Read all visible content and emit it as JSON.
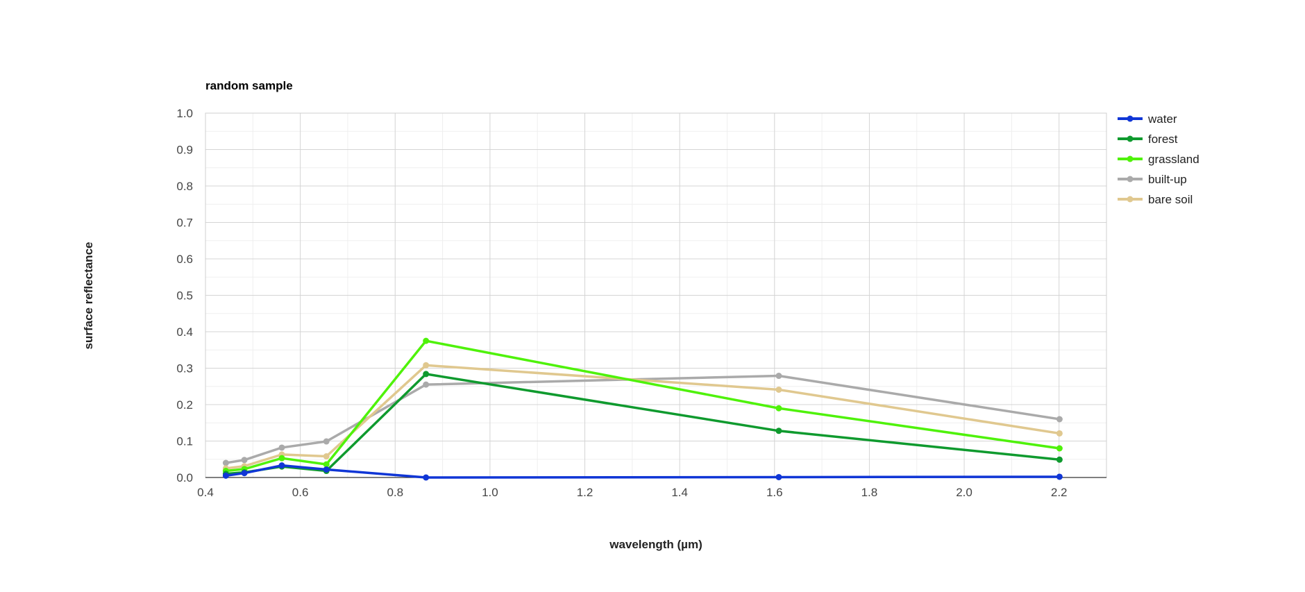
{
  "chart_data": {
    "type": "line",
    "title": "random sample",
    "xlabel": "wavelength (µm)",
    "ylabel": "surface reflectance",
    "xlim": [
      0.4,
      2.3
    ],
    "ylim": [
      0.0,
      1.0
    ],
    "xticks": [
      0.4,
      0.6,
      0.8,
      1.0,
      1.2,
      1.4,
      1.6,
      1.8,
      2.0,
      2.2
    ],
    "yticks": [
      0.0,
      0.1,
      0.2,
      0.3,
      0.4,
      0.5,
      0.6,
      0.7,
      0.8,
      0.9,
      1.0
    ],
    "grid": true,
    "legend_position": "right",
    "x": [
      0.443,
      0.482,
      0.561,
      0.655,
      0.865,
      1.609,
      2.201
    ],
    "series": [
      {
        "name": "water",
        "color": "#1036d6",
        "values": [
          0.005,
          0.012,
          0.033,
          0.022,
          0.0,
          0.001,
          0.002
        ]
      },
      {
        "name": "forest",
        "color": "#0f9a2e",
        "values": [
          0.01,
          0.014,
          0.03,
          0.018,
          0.284,
          0.128,
          0.049
        ]
      },
      {
        "name": "grassland",
        "color": "#4ff20a",
        "values": [
          0.018,
          0.023,
          0.053,
          0.036,
          0.375,
          0.19,
          0.08
        ]
      },
      {
        "name": "built-up",
        "color": "#aaaaaa",
        "values": [
          0.04,
          0.048,
          0.082,
          0.099,
          0.255,
          0.279,
          0.16
        ]
      },
      {
        "name": "bare soil",
        "color": "#e0c88f",
        "values": [
          0.025,
          0.031,
          0.063,
          0.058,
          0.308,
          0.241,
          0.121
        ]
      }
    ]
  }
}
